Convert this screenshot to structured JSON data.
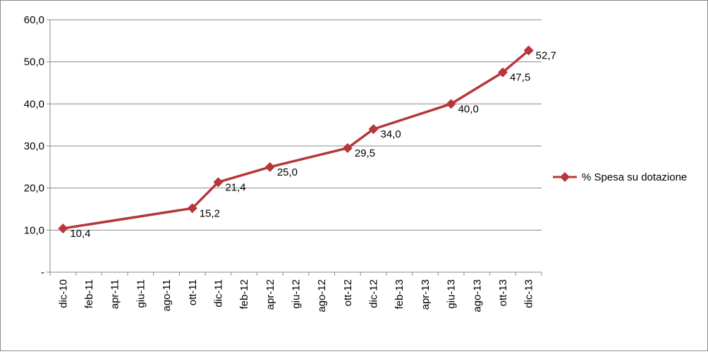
{
  "chart_data": {
    "type": "line",
    "title": "",
    "xlabel": "",
    "ylabel": "",
    "categories": [
      "dic-10",
      "feb-11",
      "apr-11",
      "giu-11",
      "ago-11",
      "ott-11",
      "dic-11",
      "feb-12",
      "apr-12",
      "giu-12",
      "ago-12",
      "ott-12",
      "dic-12",
      "feb-13",
      "apr-13",
      "giu-13",
      "ago-13",
      "ott-13",
      "dic-13"
    ],
    "yticks": [
      "-",
      "10,0",
      "20,0",
      "30,0",
      "40,0",
      "50,0",
      "60,0"
    ],
    "ylim": [
      0,
      60
    ],
    "grid": true,
    "legend_position": "right",
    "series": [
      {
        "name": "% Spesa su dotazione",
        "color": "#b5373a",
        "marker": "diamond",
        "points": [
          {
            "x": "dic-10",
            "y": 10.4,
            "label": "10,4"
          },
          {
            "x": "ott-11",
            "y": 15.2,
            "label": "15,2"
          },
          {
            "x": "dic-11",
            "y": 21.4,
            "label": "21,4"
          },
          {
            "x": "apr-12",
            "y": 25.0,
            "label": "25,0"
          },
          {
            "x": "ott-12",
            "y": 29.5,
            "label": "29,5"
          },
          {
            "x": "dic-12",
            "y": 34.0,
            "label": "34,0"
          },
          {
            "x": "giu-13",
            "y": 40.0,
            "label": "40,0"
          },
          {
            "x": "ott-13",
            "y": 47.5,
            "label": "47,5"
          },
          {
            "x": "dic-13",
            "y": 52.7,
            "label": "52,7"
          }
        ]
      }
    ]
  }
}
